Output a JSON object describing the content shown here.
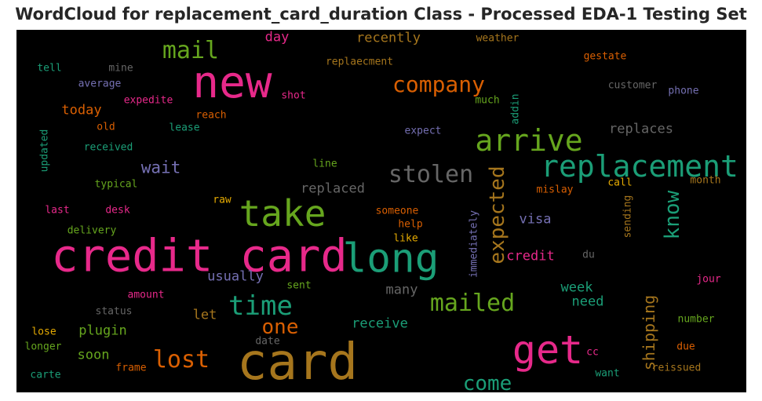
{
  "chart_data": {
    "type": "wordcloud",
    "title": "WordCloud for replacement_card_duration Class - Processed EDA-1 Testing Set",
    "background": "#000000",
    "words": [
      {
        "text": "credit card",
        "weight": 100,
        "color": "#e7298a"
      },
      {
        "text": "card",
        "weight": 96,
        "color": "#a6761d"
      },
      {
        "text": "new",
        "weight": 80,
        "color": "#e7298a"
      },
      {
        "text": "long",
        "weight": 78,
        "color": "#1b9e77"
      },
      {
        "text": "take",
        "weight": 72,
        "color": "#66a61e"
      },
      {
        "text": "get",
        "weight": 70,
        "color": "#e7298a"
      },
      {
        "text": "replacement",
        "weight": 60,
        "color": "#1b9e77"
      },
      {
        "text": "arrive",
        "weight": 58,
        "color": "#66a61e"
      },
      {
        "text": "time",
        "weight": 50,
        "color": "#1b9e77"
      },
      {
        "text": "stolen",
        "weight": 46,
        "color": "#666666"
      },
      {
        "text": "expected",
        "weight": 42,
        "color": "#a6761d"
      },
      {
        "text": "mailed",
        "weight": 42,
        "color": "#66a61e"
      },
      {
        "text": "lost",
        "weight": 42,
        "color": "#d95f02"
      },
      {
        "text": "company",
        "weight": 40,
        "color": "#d95f02"
      },
      {
        "text": "mail",
        "weight": 40,
        "color": "#66a61e"
      },
      {
        "text": "know",
        "weight": 38,
        "color": "#1b9e77"
      },
      {
        "text": "one",
        "weight": 36,
        "color": "#d95f02"
      },
      {
        "text": "come",
        "weight": 34,
        "color": "#1b9e77"
      },
      {
        "text": "shipping",
        "weight": 30,
        "color": "#a6761d"
      },
      {
        "text": "wait",
        "weight": 28,
        "color": "#7570b3"
      },
      {
        "text": "replaced",
        "weight": 26,
        "color": "#666666"
      },
      {
        "text": "replaces",
        "weight": 26,
        "color": "#666666"
      },
      {
        "text": "today",
        "weight": 26,
        "color": "#d95f02"
      },
      {
        "text": "recently",
        "weight": 26,
        "color": "#a6761d"
      },
      {
        "text": "credit",
        "weight": 26,
        "color": "#e7298a"
      },
      {
        "text": "visa",
        "weight": 25,
        "color": "#7570b3"
      },
      {
        "text": "receive",
        "weight": 25,
        "color": "#1b9e77"
      },
      {
        "text": "plugin",
        "weight": 25,
        "color": "#66a61e"
      },
      {
        "text": "usually",
        "weight": 25,
        "color": "#7570b3"
      },
      {
        "text": "week",
        "weight": 24,
        "color": "#1b9e77"
      },
      {
        "text": "need",
        "weight": 24,
        "color": "#1b9e77"
      },
      {
        "text": "many",
        "weight": 24,
        "color": "#666666"
      },
      {
        "text": "soon",
        "weight": 24,
        "color": "#66a61e"
      },
      {
        "text": "let",
        "weight": 24,
        "color": "#a6761d"
      },
      {
        "text": "day",
        "weight": 23,
        "color": "#e7298a"
      },
      {
        "text": "customer",
        "weight": 18,
        "color": "#666666"
      },
      {
        "text": "phone",
        "weight": 18,
        "color": "#7570b3"
      },
      {
        "text": "weather",
        "weight": 17,
        "color": "#a6761d"
      },
      {
        "text": "gestate",
        "weight": 17,
        "color": "#d95f02"
      },
      {
        "text": "replaecment",
        "weight": 17,
        "color": "#a6761d"
      },
      {
        "text": "mine",
        "weight": 17,
        "color": "#666666"
      },
      {
        "text": "tell",
        "weight": 17,
        "color": "#1b9e77"
      },
      {
        "text": "average",
        "weight": 17,
        "color": "#7570b3"
      },
      {
        "text": "expedite",
        "weight": 17,
        "color": "#e7298a"
      },
      {
        "text": "shot",
        "weight": 17,
        "color": "#e7298a"
      },
      {
        "text": "much",
        "weight": 17,
        "color": "#66a61e"
      },
      {
        "text": "addin",
        "weight": 17,
        "color": "#1b9e77"
      },
      {
        "text": "reach",
        "weight": 17,
        "color": "#d95f02"
      },
      {
        "text": "old",
        "weight": 17,
        "color": "#d95f02"
      },
      {
        "text": "lease",
        "weight": 17,
        "color": "#1b9e77"
      },
      {
        "text": "expect",
        "weight": 17,
        "color": "#7570b3"
      },
      {
        "text": "received",
        "weight": 17,
        "color": "#1b9e77"
      },
      {
        "text": "updated",
        "weight": 17,
        "color": "#1b9e77"
      },
      {
        "text": "line",
        "weight": 17,
        "color": "#66a61e"
      },
      {
        "text": "typical",
        "weight": 17,
        "color": "#66a61e"
      },
      {
        "text": "mislay",
        "weight": 17,
        "color": "#d95f02"
      },
      {
        "text": "call",
        "weight": 17,
        "color": "#e6ab02"
      },
      {
        "text": "month",
        "weight": 17,
        "color": "#a6761d"
      },
      {
        "text": "raw",
        "weight": 17,
        "color": "#e6ab02"
      },
      {
        "text": "last",
        "weight": 17,
        "color": "#e7298a"
      },
      {
        "text": "desk",
        "weight": 17,
        "color": "#e7298a"
      },
      {
        "text": "someone",
        "weight": 17,
        "color": "#d95f02"
      },
      {
        "text": "help",
        "weight": 17,
        "color": "#d95f02"
      },
      {
        "text": "immediately",
        "weight": 17,
        "color": "#7570b3"
      },
      {
        "text": "sending",
        "weight": 17,
        "color": "#a6761d"
      },
      {
        "text": "delivery",
        "weight": 17,
        "color": "#66a61e"
      },
      {
        "text": "like",
        "weight": 17,
        "color": "#e6ab02"
      },
      {
        "text": "du",
        "weight": 17,
        "color": "#666666"
      },
      {
        "text": "sent",
        "weight": 17,
        "color": "#66a61e"
      },
      {
        "text": "jour",
        "weight": 17,
        "color": "#e7298a"
      },
      {
        "text": "amount",
        "weight": 17,
        "color": "#e7298a"
      },
      {
        "text": "status",
        "weight": 17,
        "color": "#666666"
      },
      {
        "text": "number",
        "weight": 17,
        "color": "#66a61e"
      },
      {
        "text": "lose",
        "weight": 17,
        "color": "#e6ab02"
      },
      {
        "text": "longer",
        "weight": 17,
        "color": "#66a61e"
      },
      {
        "text": "date",
        "weight": 17,
        "color": "#666666"
      },
      {
        "text": "cc",
        "weight": 17,
        "color": "#e7298a"
      },
      {
        "text": "due",
        "weight": 17,
        "color": "#d95f02"
      },
      {
        "text": "frame",
        "weight": 17,
        "color": "#d95f02"
      },
      {
        "text": "reissued",
        "weight": 17,
        "color": "#a6761d"
      },
      {
        "text": "want",
        "weight": 17,
        "color": "#1b9e77"
      },
      {
        "text": "carte",
        "weight": 17,
        "color": "#1b9e77"
      }
    ]
  }
}
